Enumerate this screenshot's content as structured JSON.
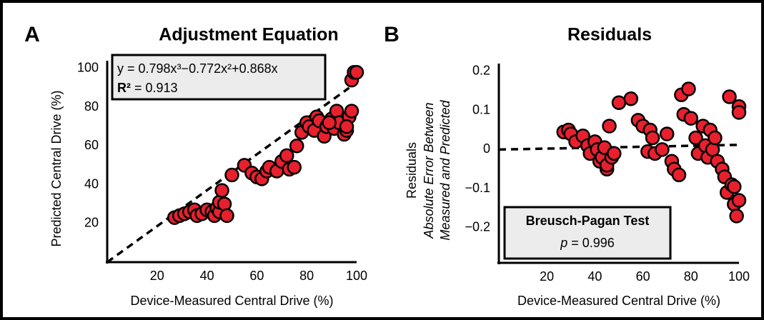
{
  "chart_data": [
    {
      "type": "scatter",
      "panel_label": "A",
      "title": "Adjustment Equation",
      "xlabel": "Device-Measured Central Drive (%)",
      "ylabel": "Predicted Central Drive (%)",
      "color": "#e8202e",
      "x": [
        27,
        29,
        31,
        33,
        35,
        36,
        38,
        40,
        42,
        43,
        44,
        45,
        45,
        46,
        47,
        48,
        50,
        55,
        58,
        60,
        62,
        64,
        65,
        68,
        70,
        72,
        73,
        75,
        76,
        78,
        80,
        81,
        83,
        84,
        85,
        87,
        88,
        90,
        91,
        92,
        93,
        95,
        96,
        97,
        98,
        98,
        99,
        100,
        96,
        89
      ],
      "values": [
        23,
        24,
        25,
        26,
        27,
        24,
        25,
        27,
        26,
        24,
        28,
        26,
        31,
        37,
        30,
        24,
        45,
        50,
        46,
        44,
        43,
        47,
        49,
        47,
        52,
        55,
        48,
        49,
        60,
        67,
        72,
        70,
        68,
        75,
        73,
        65,
        70,
        74,
        69,
        78,
        72,
        66,
        68,
        75,
        78,
        94,
        98,
        98,
        70,
        72
      ],
      "trend_line": {
        "x": [
          0,
          97
        ],
        "values": [
          0,
          90
        ]
      },
      "xlim": [
        0,
        100
      ],
      "ylim": [
        0,
        104
      ],
      "xticks": [
        20,
        40,
        60,
        80,
        100
      ],
      "yticks": [
        20,
        40,
        60,
        80,
        100
      ],
      "annotations": [
        "y = 0.798x³−0.772x²+0.868x",
        "R²",
        "= 0.913"
      ]
    },
    {
      "type": "scatter",
      "panel_label": "B",
      "title": "Residuals",
      "xlabel": "Device-Measured Central Drive (%)",
      "ylabel": [
        "Residuals",
        "Absolute Error Between",
        "Measured and Predicted"
      ],
      "color": "#e8202e",
      "x": [
        27,
        29,
        30,
        32,
        35,
        37,
        38,
        40,
        41,
        42,
        43,
        44,
        45,
        45,
        46,
        47,
        48,
        50,
        55,
        58,
        60,
        62,
        63,
        64,
        65,
        68,
        70,
        72,
        73,
        75,
        76,
        77,
        79,
        80,
        82,
        83,
        85,
        86,
        87,
        88,
        89,
        90,
        91,
        93,
        94,
        95,
        96,
        97,
        98,
        99,
        100,
        100,
        100,
        98
      ],
      "values": [
        0.045,
        0.05,
        0.04,
        0.02,
        0.035,
        0.01,
        -0.01,
        0.02,
        0,
        -0.03,
        -0.02,
        0.005,
        -0.05,
        -0.04,
        0.06,
        -0.02,
        -0.01,
        0.12,
        0.13,
        0.075,
        0.06,
        -0.005,
        0.05,
        0.03,
        -0.01,
        0,
        0.04,
        -0.03,
        -0.05,
        -0.065,
        0.14,
        0.09,
        0.155,
        0.08,
        0.03,
        -0.01,
        0.06,
        0.01,
        -0.02,
        0.05,
        0,
        0.03,
        -0.03,
        -0.05,
        -0.07,
        -0.11,
        0.135,
        -0.09,
        -0.14,
        -0.17,
        0.11,
        -0.13,
        0.095,
        -0.095
      ],
      "trend_line": {
        "x": [
          0,
          100
        ],
        "values": [
          0,
          0.012
        ]
      },
      "xlim": [
        0,
        100
      ],
      "ylim": [
        -0.29,
        0.22
      ],
      "xticks": [
        20,
        40,
        60,
        80,
        100
      ],
      "yticks": [
        {
          "value": -0.2,
          "label": "−0.2"
        },
        {
          "value": -0.1,
          "label": "−0.1"
        },
        0,
        0.1,
        0.2
      ],
      "annotations": [
        "Breusch-Pagan Test",
        "p",
        "= 0.996"
      ]
    }
  ]
}
